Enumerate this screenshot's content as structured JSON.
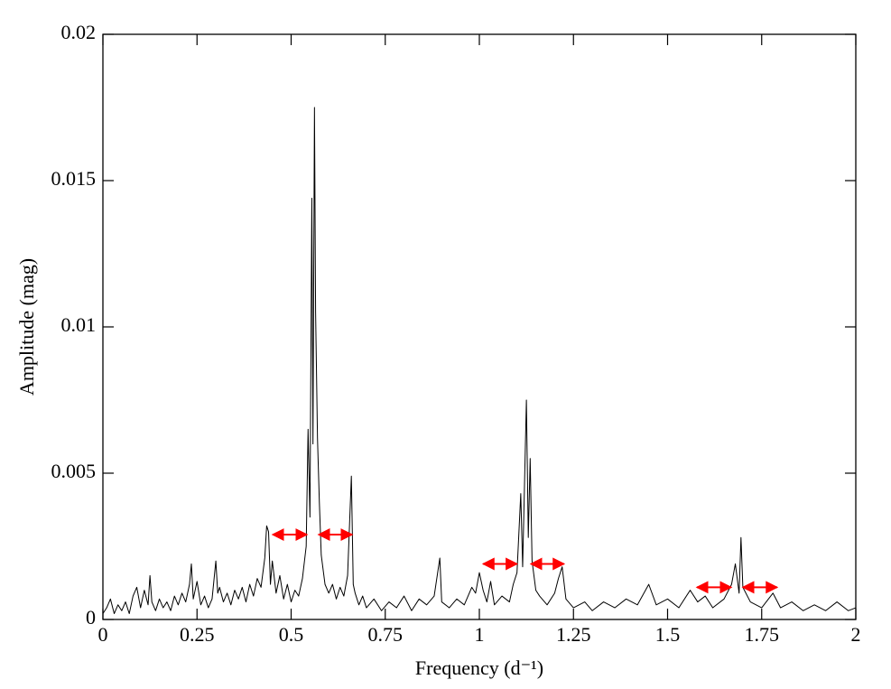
{
  "chart_data": {
    "type": "line",
    "x_label": "Frequency (d⁻¹)",
    "y_label": "Amplitude (mag)",
    "xlim": [
      0,
      2
    ],
    "ylim": [
      0,
      0.02
    ],
    "xticks": [
      0,
      0.25,
      0.5,
      0.75,
      1,
      1.25,
      1.5,
      1.75,
      2
    ],
    "yticks": [
      0,
      0.005,
      0.01,
      0.015,
      0.02
    ],
    "grid": false,
    "color": "#000000",
    "arrow_color": "#ff0000",
    "x": [
      0,
      0.01,
      0.02,
      0.03,
      0.04,
      0.05,
      0.06,
      0.07,
      0.08,
      0.09,
      0.1,
      0.11,
      0.12,
      0.125,
      0.13,
      0.14,
      0.15,
      0.16,
      0.17,
      0.18,
      0.19,
      0.2,
      0.21,
      0.22,
      0.23,
      0.235,
      0.24,
      0.25,
      0.26,
      0.27,
      0.28,
      0.29,
      0.3,
      0.305,
      0.31,
      0.32,
      0.33,
      0.34,
      0.35,
      0.36,
      0.37,
      0.38,
      0.39,
      0.4,
      0.41,
      0.42,
      0.43,
      0.435,
      0.44,
      0.445,
      0.45,
      0.46,
      0.47,
      0.48,
      0.49,
      0.5,
      0.51,
      0.52,
      0.53,
      0.54,
      0.545,
      0.55,
      0.555,
      0.558,
      0.562,
      0.565,
      0.57,
      0.575,
      0.58,
      0.59,
      0.6,
      0.61,
      0.62,
      0.63,
      0.64,
      0.65,
      0.66,
      0.665,
      0.67,
      0.68,
      0.69,
      0.7,
      0.72,
      0.74,
      0.76,
      0.78,
      0.8,
      0.82,
      0.84,
      0.86,
      0.88,
      0.895,
      0.9,
      0.92,
      0.94,
      0.96,
      0.98,
      0.99,
      1,
      1.01,
      1.02,
      1.03,
      1.04,
      1.06,
      1.08,
      1.09,
      1.1,
      1.11,
      1.115,
      1.125,
      1.13,
      1.135,
      1.14,
      1.15,
      1.16,
      1.18,
      1.2,
      1.21,
      1.22,
      1.23,
      1.25,
      1.28,
      1.3,
      1.33,
      1.36,
      1.39,
      1.42,
      1.45,
      1.47,
      1.5,
      1.53,
      1.56,
      1.58,
      1.6,
      1.62,
      1.65,
      1.67,
      1.68,
      1.69,
      1.695,
      1.7,
      1.72,
      1.75,
      1.78,
      1.8,
      1.83,
      1.86,
      1.89,
      1.92,
      1.95,
      1.98,
      2
    ],
    "values": [
      0.0002,
      0.0004,
      0.0007,
      0.0002,
      0.0005,
      0.0003,
      0.0006,
      0.0002,
      0.0008,
      0.0011,
      0.0004,
      0.001,
      0.0005,
      0.0015,
      0.0006,
      0.0003,
      0.0007,
      0.0004,
      0.0006,
      0.0003,
      0.0008,
      0.0005,
      0.0009,
      0.0006,
      0.0012,
      0.0019,
      0.0007,
      0.0013,
      0.0005,
      0.0008,
      0.0004,
      0.0007,
      0.002,
      0.0009,
      0.0011,
      0.0006,
      0.0009,
      0.0005,
      0.001,
      0.0007,
      0.0011,
      0.0006,
      0.0012,
      0.0008,
      0.0014,
      0.0011,
      0.0021,
      0.0032,
      0.003,
      0.0012,
      0.002,
      0.0009,
      0.0015,
      0.0007,
      0.0012,
      0.0006,
      0.001,
      0.0008,
      0.0014,
      0.0025,
      0.0065,
      0.0035,
      0.0144,
      0.006,
      0.0175,
      0.0105,
      0.0062,
      0.004,
      0.0022,
      0.0012,
      0.0009,
      0.0012,
      0.0007,
      0.0011,
      0.0008,
      0.0015,
      0.0049,
      0.0012,
      0.0009,
      0.0005,
      0.0008,
      0.0004,
      0.0007,
      0.0003,
      0.0006,
      0.0004,
      0.0008,
      0.0003,
      0.0007,
      0.0005,
      0.0008,
      0.0021,
      0.0006,
      0.0004,
      0.0007,
      0.0005,
      0.0011,
      0.0009,
      0.0016,
      0.001,
      0.0006,
      0.0013,
      0.0005,
      0.0008,
      0.0006,
      0.0012,
      0.0016,
      0.0043,
      0.0018,
      0.0075,
      0.0028,
      0.0055,
      0.002,
      0.001,
      0.0008,
      0.0005,
      0.0009,
      0.0014,
      0.0018,
      0.0007,
      0.0004,
      0.0006,
      0.0003,
      0.0006,
      0.0004,
      0.0007,
      0.0005,
      0.0012,
      0.0005,
      0.0007,
      0.0004,
      0.001,
      0.0006,
      0.0008,
      0.0004,
      0.0007,
      0.0012,
      0.0019,
      0.0009,
      0.0028,
      0.0011,
      0.0006,
      0.0004,
      0.0009,
      0.0004,
      0.0006,
      0.0003,
      0.0005,
      0.0003,
      0.0006,
      0.0003,
      0.0004
    ],
    "arrows": [
      {
        "x": [
          0.451,
          0.542
        ],
        "y": 0.0029
      },
      {
        "x": [
          0.573,
          0.662
        ],
        "y": 0.0029
      },
      {
        "x": [
          1.01,
          1.1
        ],
        "y": 0.0019
      },
      {
        "x": [
          1.137,
          1.225
        ],
        "y": 0.0019
      },
      {
        "x": [
          1.578,
          1.669
        ],
        "y": 0.0011
      },
      {
        "x": [
          1.7,
          1.791
        ],
        "y": 0.0011
      }
    ]
  }
}
